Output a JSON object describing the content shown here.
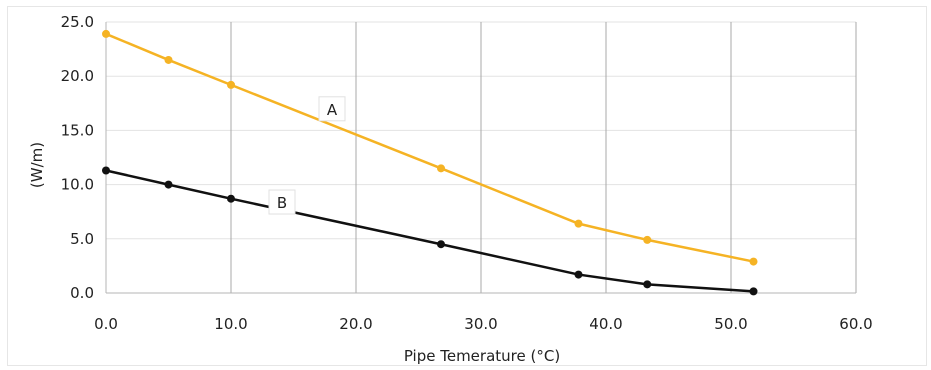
{
  "chart_data": {
    "type": "line",
    "title": "",
    "xlabel": "Pipe Temerature (°C)",
    "ylabel": "(W/m)",
    "xlim": [
      0,
      60
    ],
    "ylim": [
      0,
      25
    ],
    "x_ticks": [
      "0.0",
      "10.0",
      "20.0",
      "30.0",
      "40.0",
      "50.0",
      "60.0"
    ],
    "y_ticks": [
      "0.0",
      "5.0",
      "10.0",
      "15.0",
      "20.0",
      "25.0"
    ],
    "grid": "vertical-gray-and-horizontal-light",
    "series": [
      {
        "name": "A",
        "color": "#f5b324",
        "points": [
          [
            0,
            23.9
          ],
          [
            5,
            21.5
          ],
          [
            10,
            19.2
          ],
          [
            26.8,
            11.5
          ],
          [
            37.8,
            6.4
          ],
          [
            43.3,
            4.9
          ],
          [
            51.8,
            2.9
          ]
        ]
      },
      {
        "name": "B",
        "color": "#111111",
        "points": [
          [
            0,
            11.3
          ],
          [
            5,
            10.0
          ],
          [
            10,
            8.7
          ],
          [
            26.8,
            4.5
          ],
          [
            37.8,
            1.7
          ],
          [
            43.3,
            0.8
          ],
          [
            51.8,
            0.15
          ]
        ]
      }
    ]
  }
}
